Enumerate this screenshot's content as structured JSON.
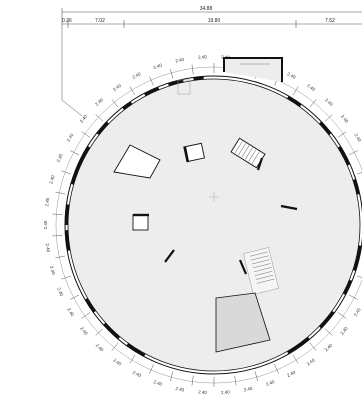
{
  "top_dimensions": {
    "overall": "34.88",
    "left_offset": "0.36",
    "left_segment": "7.02",
    "center_segment": "19.80",
    "right_segment": "7.52"
  },
  "segment_label": "2.40",
  "segment_count": 46,
  "colors": {
    "floor": "#ededed",
    "stair_area": "#d9d9d9",
    "line": "#111111",
    "dim_line": "#555555"
  }
}
